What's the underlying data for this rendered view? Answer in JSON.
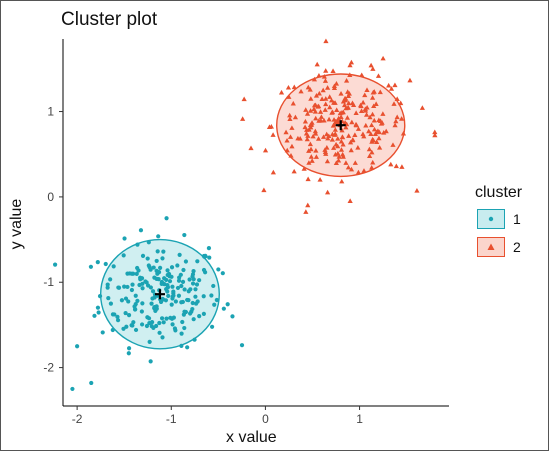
{
  "chart_data": {
    "type": "scatter",
    "title": "Cluster plot",
    "xlabel": "x value",
    "ylabel": "y value",
    "xlim": [
      -2.15,
      1.95
    ],
    "ylim": [
      -2.45,
      1.85
    ],
    "x_ticks": [
      -2,
      -1,
      0,
      1
    ],
    "y_ticks": [
      -2,
      -1,
      0,
      1
    ],
    "grid": false,
    "legend": {
      "title": "cluster",
      "placement": "right",
      "entries": [
        {
          "label": "1",
          "marker": "circle"
        },
        {
          "label": "2",
          "marker": "triangle"
        }
      ]
    },
    "series": [
      {
        "name": "1",
        "marker": "circle",
        "color": "#1ba3b3",
        "fill": "#c8ecef",
        "center": [
          -1.12,
          -1.14
        ],
        "ellipse_radii": [
          0.63,
          0.64
        ],
        "n_points": 220,
        "spread": [
          0.32,
          0.3
        ],
        "outliers": [
          [
            -2.05,
            -2.25
          ],
          [
            -1.85,
            -2.18
          ],
          [
            -2.0,
            -1.75
          ],
          [
            -0.35,
            -1.4
          ],
          [
            -0.5,
            -0.85
          ],
          [
            -1.05,
            -0.25
          ],
          [
            -0.6,
            -0.6
          ]
        ]
      },
      {
        "name": "2",
        "marker": "triangle",
        "color": "#e8502f",
        "fill": "#fbd5cc",
        "center": [
          0.8,
          0.84
        ],
        "ellipse_radii": [
          0.68,
          0.6
        ],
        "n_points": 260,
        "spread": [
          0.36,
          0.3
        ],
        "outliers": [
          [
            1.8,
            0.72
          ],
          [
            1.25,
            1.62
          ],
          [
            0.55,
            1.55
          ],
          [
            0.9,
            -0.05
          ],
          [
            0.45,
            -0.1
          ],
          [
            1.45,
            0.35
          ]
        ]
      }
    ]
  }
}
